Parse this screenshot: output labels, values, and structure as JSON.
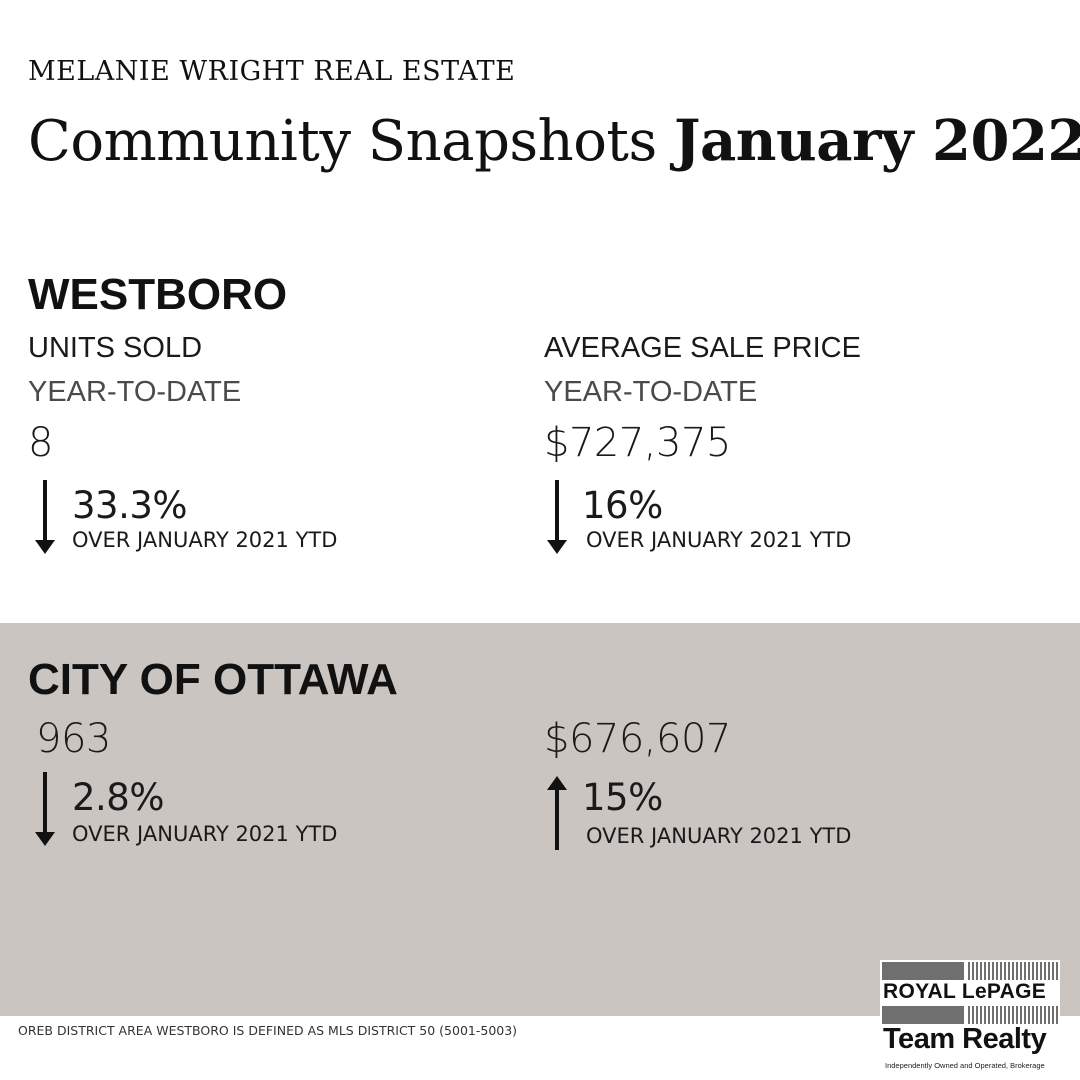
{
  "header": {
    "brand": "MELANIE WRIGHT REAL ESTATE",
    "title_regular": "Community Snapshots ",
    "title_bold": "January 2022"
  },
  "westboro": {
    "name": "WESTBORO",
    "units_label": "UNITS SOLD",
    "units_sublabel": "YEAR-TO-DATE",
    "units_value": "8",
    "units_change": "33.3%",
    "units_change_direction": "down",
    "units_change_note": "OVER JANUARY 2021 YTD",
    "price_label": "AVERAGE SALE PRICE",
    "price_sublabel": "YEAR-TO-DATE",
    "price_value": "$727,375",
    "price_change": "16%",
    "price_change_direction": "down",
    "price_change_note": "OVER JANUARY 2021 YTD"
  },
  "ottawa": {
    "name": "CITY OF OTTAWA",
    "units_value": "963",
    "units_change": "2.8%",
    "units_change_direction": "down",
    "units_change_note": "OVER JANUARY 2021 YTD",
    "price_value": "$676,607",
    "price_change": "15%",
    "price_change_direction": "up",
    "price_change_note": "OVER JANUARY 2021 YTD"
  },
  "footnote": "OREB DISTRICT AREA WESTBORO IS DEFINED AS MLS DISTRICT 50 (5001-5003)",
  "logo": {
    "line1": "ROYAL LePAGE",
    "line2": "Team Realty",
    "tagline": "Independently Owned and Operated, Brokerage"
  },
  "colors": {
    "band_background": "#cbc5c1",
    "text": "#111111"
  },
  "icons": {
    "down": "arrow-down-icon",
    "up": "arrow-up-icon"
  }
}
